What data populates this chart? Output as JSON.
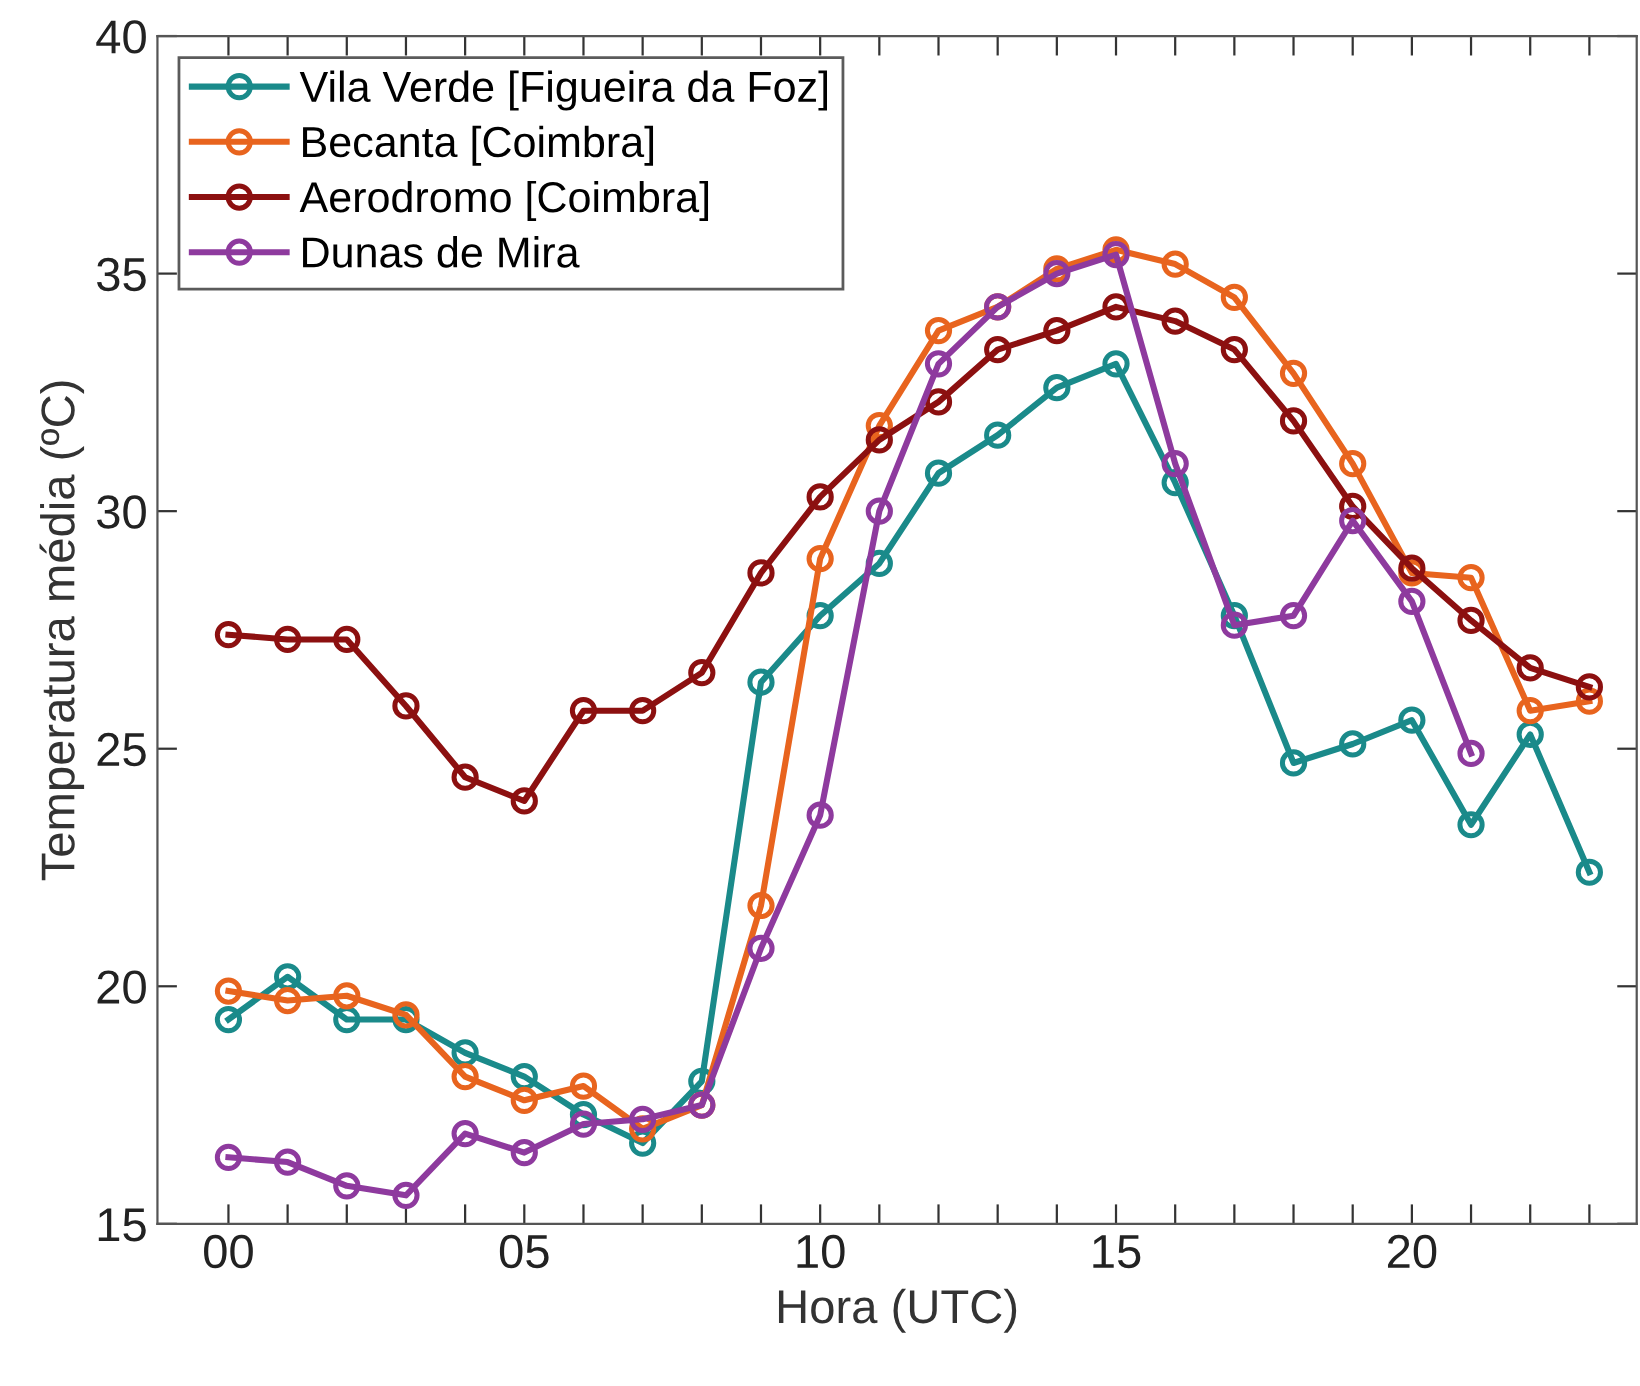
{
  "chart_data": {
    "type": "line",
    "xlabel": "Hora (UTC)",
    "ylabel": "Temperatura média (ºC)",
    "x": [
      0,
      1,
      2,
      3,
      4,
      5,
      6,
      7,
      8,
      9,
      10,
      11,
      12,
      13,
      14,
      15,
      16,
      17,
      18,
      19,
      20,
      21,
      22,
      23
    ],
    "xlim": [
      -1.2,
      23.8
    ],
    "xticks": [
      {
        "value": 0,
        "label": "00"
      },
      {
        "value": 1,
        "label": null
      },
      {
        "value": 2,
        "label": null
      },
      {
        "value": 3,
        "label": null
      },
      {
        "value": 4,
        "label": null
      },
      {
        "value": 5,
        "label": "05"
      },
      {
        "value": 6,
        "label": null
      },
      {
        "value": 7,
        "label": null
      },
      {
        "value": 8,
        "label": null
      },
      {
        "value": 9,
        "label": null
      },
      10,
      {
        "value": 11,
        "label": null
      },
      {
        "value": 12,
        "label": null
      },
      {
        "value": 13,
        "label": null
      },
      {
        "value": 14,
        "label": null
      },
      15,
      {
        "value": 16,
        "label": null
      },
      {
        "value": 17,
        "label": null
      },
      {
        "value": 18,
        "label": null
      },
      {
        "value": 19,
        "label": null
      },
      20,
      {
        "value": 21,
        "label": null
      },
      {
        "value": 22,
        "label": null
      },
      {
        "value": 23,
        "label": null
      }
    ],
    "ylim": [
      15,
      40
    ],
    "yticks": [
      15,
      20,
      25,
      30,
      35,
      40
    ],
    "marker": "circle",
    "line_style": "solid",
    "grid": false,
    "legend": "top left",
    "series": [
      {
        "name": "Vila Verde [Figueira da Foz]",
        "color": "#1a8a8a",
        "values": [
          19.3,
          20.2,
          19.3,
          19.3,
          18.6,
          18.1,
          17.3,
          16.7,
          18.0,
          26.4,
          27.8,
          28.9,
          30.8,
          31.6,
          32.6,
          33.1,
          30.6,
          27.8,
          24.7,
          25.1,
          25.6,
          23.4,
          25.3,
          22.4
        ]
      },
      {
        "name": "Becanta [Coimbra]",
        "color": "#e8641e",
        "values": [
          19.9,
          19.7,
          19.8,
          19.4,
          18.1,
          17.6,
          17.9,
          17.0,
          17.5,
          21.7,
          29.0,
          31.8,
          33.8,
          34.3,
          35.1,
          35.5,
          35.2,
          34.5,
          32.9,
          31.0,
          28.7,
          28.6,
          25.8,
          26.0
        ]
      },
      {
        "name": "Aerodromo [Coimbra]",
        "color": "#8c1010",
        "values": [
          27.4,
          27.3,
          27.3,
          25.9,
          24.4,
          23.9,
          25.8,
          25.8,
          26.6,
          28.7,
          30.3,
          31.5,
          32.3,
          33.4,
          33.8,
          34.3,
          34.0,
          33.4,
          31.9,
          30.1,
          28.8,
          27.7,
          26.7,
          26.3
        ]
      },
      {
        "name": "Dunas de Mira",
        "color": "#8e3a9e",
        "values": [
          16.4,
          16.3,
          15.8,
          15.6,
          16.9,
          16.5,
          17.1,
          17.2,
          17.5,
          20.8,
          23.6,
          30.0,
          33.1,
          34.3,
          35.0,
          35.4,
          31.0,
          27.6,
          27.8,
          29.8,
          28.1,
          24.9,
          null,
          null
        ]
      }
    ]
  }
}
